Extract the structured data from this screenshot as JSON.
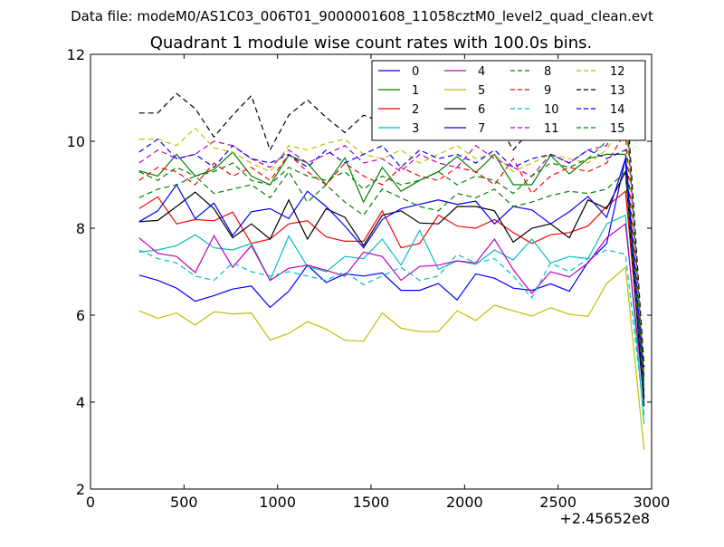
{
  "suptitle": "Data file: modeM0/AS1C03_006T01_9000001608_11058cztM0_level2_quad_clean.evt",
  "chart_data": {
    "type": "line",
    "title": "Quadrant 1 module wise count rates with 100.0s bins.",
    "xlabel": "",
    "ylabel": "",
    "x_offset_label": "+2.45652e8",
    "xlim": [
      0,
      3000
    ],
    "ylim": [
      2,
      12
    ],
    "xticks": [
      "0",
      "500",
      "1000",
      "1500",
      "2000",
      "2500",
      "3000"
    ],
    "yticks": [
      "2",
      "4",
      "6",
      "8",
      "10",
      "12"
    ],
    "grid": false,
    "legend_position": "top-right",
    "x": [
      260,
      360,
      460,
      560,
      660,
      760,
      860,
      960,
      1060,
      1160,
      1260,
      1360,
      1460,
      1560,
      1660,
      1760,
      1860,
      1960,
      2060,
      2160,
      2260,
      2360,
      2460,
      2560,
      2660,
      2760,
      2860,
      2960
    ],
    "series": [
      {
        "name": "0",
        "color": "#0000ff",
        "dash": "solid",
        "values": [
          6.92,
          6.8,
          6.62,
          6.32,
          6.45,
          6.6,
          6.67,
          6.18,
          6.55,
          7.15,
          6.75,
          6.95,
          6.9,
          6.97,
          6.57,
          6.57,
          6.73,
          6.35,
          6.95,
          6.85,
          6.62,
          6.57,
          6.72,
          6.55,
          7.22,
          7.65,
          9.6,
          4.1
        ]
      },
      {
        "name": "1",
        "color": "#008000",
        "dash": "solid",
        "values": [
          9.32,
          9.2,
          9.7,
          9.2,
          9.35,
          9.75,
          9.2,
          9.0,
          9.68,
          9.5,
          9.0,
          9.62,
          8.6,
          9.4,
          8.85,
          9.1,
          9.3,
          9.65,
          9.28,
          9.7,
          9.0,
          9.0,
          9.68,
          9.25,
          9.6,
          9.7,
          9.7,
          4.3
        ]
      },
      {
        "name": "2",
        "color": "#ff0000",
        "dash": "solid",
        "values": [
          8.45,
          8.72,
          8.1,
          8.2,
          8.17,
          8.37,
          7.65,
          7.75,
          8.1,
          8.17,
          7.8,
          7.7,
          7.7,
          8.4,
          7.55,
          7.65,
          8.3,
          8.05,
          8.0,
          8.2,
          7.9,
          7.65,
          7.85,
          7.9,
          8.05,
          8.5,
          8.85,
          4.25
        ]
      },
      {
        "name": "3",
        "color": "#00bfbf",
        "dash": "solid",
        "values": [
          7.45,
          7.5,
          7.6,
          7.85,
          7.55,
          7.5,
          7.65,
          6.8,
          7.82,
          7.12,
          7.0,
          7.35,
          7.3,
          7.75,
          7.15,
          7.95,
          7.05,
          7.25,
          7.17,
          7.5,
          7.27,
          7.75,
          7.2,
          7.35,
          7.3,
          8.1,
          8.3,
          3.5
        ]
      },
      {
        "name": "4",
        "color": "#bf00bf",
        "dash": "solid",
        "values": [
          7.78,
          7.42,
          7.35,
          6.98,
          7.83,
          7.1,
          7.6,
          6.8,
          7.08,
          7.15,
          7.03,
          6.9,
          7.45,
          7.35,
          6.8,
          7.12,
          7.15,
          7.25,
          7.2,
          7.75,
          7.05,
          6.5,
          7.0,
          6.88,
          7.2,
          7.78,
          8.1,
          4.05
        ]
      },
      {
        "name": "5",
        "color": "#bfbf00",
        "dash": "solid",
        "values": [
          6.1,
          5.93,
          6.05,
          5.77,
          6.08,
          6.03,
          6.05,
          5.43,
          5.58,
          5.85,
          5.68,
          5.42,
          5.4,
          6.05,
          5.7,
          5.62,
          5.62,
          6.1,
          5.88,
          6.23,
          6.1,
          5.98,
          6.17,
          6.02,
          5.97,
          6.73,
          7.1,
          2.9
        ]
      },
      {
        "name": "6",
        "color": "#000000",
        "dash": "solid",
        "values": [
          8.15,
          8.18,
          8.5,
          8.83,
          8.45,
          7.78,
          8.1,
          7.75,
          8.65,
          7.75,
          8.45,
          8.25,
          7.6,
          8.3,
          8.4,
          8.12,
          8.1,
          8.5,
          8.5,
          8.4,
          7.68,
          8.0,
          8.1,
          7.78,
          8.65,
          8.45,
          9.3,
          3.9
        ]
      },
      {
        "name": "7",
        "color": "#0000ff",
        "dash": "solid",
        "values": [
          8.15,
          8.4,
          9.0,
          8.22,
          8.58,
          7.83,
          8.38,
          8.45,
          8.22,
          8.85,
          8.5,
          8.05,
          7.55,
          8.2,
          8.45,
          8.55,
          8.65,
          8.55,
          8.62,
          8.1,
          8.5,
          8.42,
          8.1,
          8.38,
          8.73,
          8.25,
          9.6,
          4.1
        ]
      },
      {
        "name": "8",
        "color": "#008000",
        "dash": "dashed",
        "values": [
          8.7,
          8.9,
          9.0,
          9.2,
          8.8,
          8.9,
          9.0,
          8.7,
          9.3,
          8.6,
          9.0,
          8.6,
          8.3,
          8.9,
          8.7,
          8.5,
          8.4,
          8.8,
          8.7,
          8.9,
          8.5,
          8.6,
          8.75,
          8.85,
          8.8,
          8.9,
          9.3,
          4.2
        ]
      },
      {
        "name": "9",
        "color": "#ff0000",
        "dash": "dashed",
        "values": [
          9.1,
          9.4,
          9.3,
          9.0,
          9.5,
          9.2,
          9.4,
          9.1,
          9.7,
          9.3,
          9.0,
          9.5,
          9.2,
          9.0,
          9.4,
          9.2,
          9.1,
          9.4,
          9.3,
          9.0,
          9.6,
          8.8,
          9.2,
          9.4,
          9.3,
          9.5,
          10.2,
          4.4
        ]
      },
      {
        "name": "10",
        "color": "#00bfbf",
        "dash": "dashed",
        "values": [
          7.5,
          7.3,
          7.2,
          6.9,
          6.8,
          7.2,
          7.0,
          6.9,
          7.0,
          6.9,
          6.8,
          7.0,
          6.7,
          6.9,
          7.1,
          6.8,
          6.9,
          7.4,
          7.2,
          7.3,
          6.9,
          6.4,
          7.2,
          7.0,
          7.3,
          7.5,
          7.4,
          3.7
        ]
      },
      {
        "name": "11",
        "color": "#bf00bf",
        "dash": "dashed",
        "values": [
          9.5,
          9.8,
          9.6,
          9.7,
          10.0,
          9.9,
          9.6,
          9.4,
          9.8,
          9.5,
          9.7,
          9.9,
          9.5,
          9.6,
          9.3,
          9.7,
          9.5,
          9.4,
          9.9,
          9.6,
          9.4,
          9.2,
          9.7,
          9.5,
          9.8,
          9.9,
          11.0,
          4.6
        ]
      },
      {
        "name": "12",
        "color": "#bfbf00",
        "dash": "dashed",
        "values": [
          10.05,
          10.05,
          9.9,
          10.3,
          9.85,
          9.75,
          9.5,
          9.3,
          9.9,
          9.8,
          9.95,
          10.05,
          9.7,
          9.6,
          9.8,
          9.5,
          9.7,
          9.9,
          9.6,
          9.7,
          9.3,
          9.5,
          9.7,
          9.6,
          9.5,
          9.8,
          10.6,
          4.7
        ]
      },
      {
        "name": "13",
        "color": "#000000",
        "dash": "dashed",
        "values": [
          10.65,
          10.65,
          11.1,
          10.75,
          10.1,
          10.6,
          11.05,
          9.8,
          10.6,
          10.95,
          10.55,
          10.2,
          10.6,
          10.45,
          10.3,
          10.7,
          10.6,
          10.8,
          10.4,
          10.55,
          9.8,
          10.3,
          10.5,
          10.4,
          10.8,
          10.7,
          11.4,
          4.8
        ]
      },
      {
        "name": "14",
        "color": "#0000ff",
        "dash": "dashed",
        "values": [
          9.75,
          10.05,
          9.6,
          9.7,
          9.4,
          9.9,
          9.6,
          9.5,
          9.7,
          9.4,
          9.8,
          9.5,
          9.7,
          9.9,
          9.4,
          9.8,
          9.6,
          9.7,
          9.5,
          9.8,
          9.4,
          9.6,
          9.7,
          9.5,
          9.8,
          9.6,
          9.8,
          4.5
        ]
      },
      {
        "name": "15",
        "color": "#008000",
        "dash": "dashed",
        "values": [
          9.3,
          9.1,
          9.4,
          9.2,
          9.3,
          9.5,
          9.1,
          9.0,
          9.4,
          9.2,
          9.1,
          9.3,
          8.9,
          9.2,
          9.0,
          9.1,
          9.3,
          9.0,
          9.2,
          9.1,
          8.8,
          9.2,
          9.5,
          9.4,
          9.6,
          10.0,
          11.0,
          4.4
        ]
      }
    ]
  }
}
